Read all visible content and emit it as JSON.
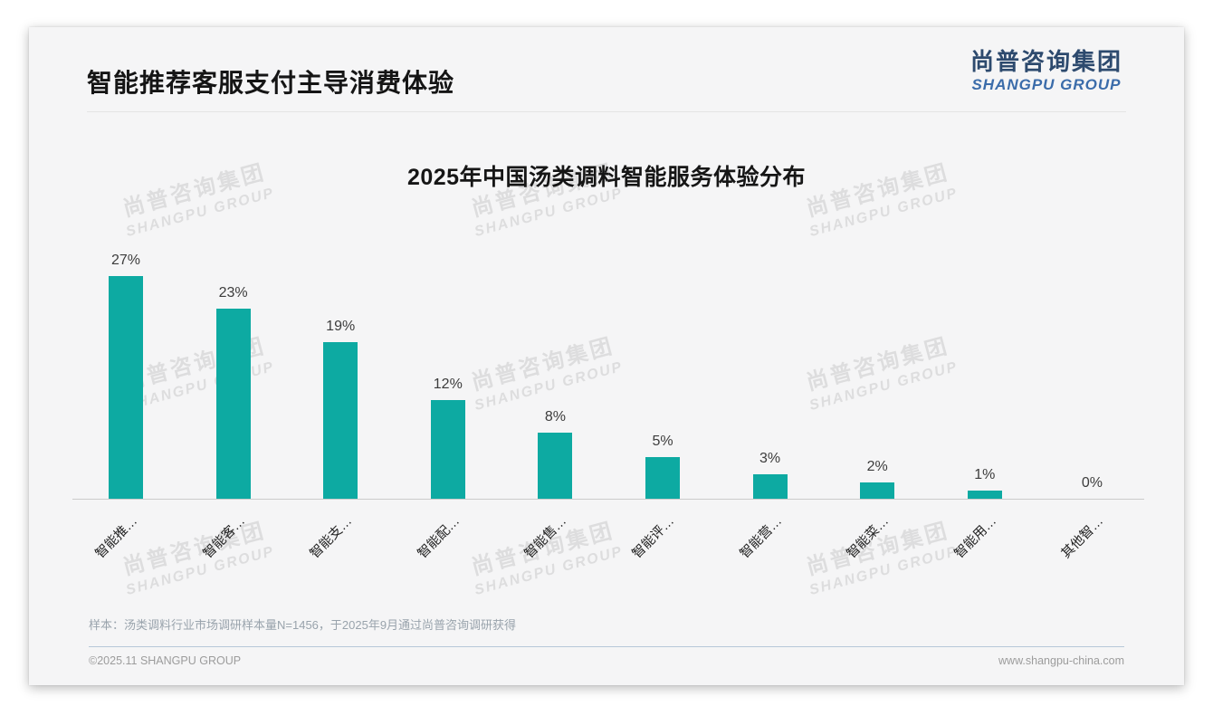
{
  "slide": {
    "page_title": "智能推荐客服支付主导消费体验",
    "logo": {
      "cn": "尚普咨询集团",
      "en": "SHANGPU GROUP"
    },
    "watermark": {
      "cn": "尚普咨询集团",
      "en": "SHANGPU GROUP"
    },
    "footnote": "样本：汤类调料行业市场调研样本量N=1456，于2025年9月通过尚普咨询调研获得",
    "footer": {
      "left": "©2025.11 SHANGPU GROUP",
      "right": "www.shangpu-china.com"
    }
  },
  "chart_data": {
    "type": "bar",
    "title": "2025年中国汤类调料智能服务体验分布",
    "categories": [
      "智能推…",
      "智能客…",
      "智能支…",
      "智能配…",
      "智能售…",
      "智能评…",
      "智能营…",
      "智能菜…",
      "智能用…",
      "其他智…"
    ],
    "values": [
      27,
      23,
      19,
      12,
      8,
      5,
      3,
      2,
      1,
      0
    ],
    "value_labels": [
      "27%",
      "23%",
      "19%",
      "12%",
      "8%",
      "5%",
      "3%",
      "2%",
      "1%",
      "0%"
    ],
    "unit": "%",
    "bar_color": "#0daaa2",
    "ylim": [
      0,
      30
    ],
    "grid": false,
    "legend": false,
    "x_labels_rotated_deg": 45
  }
}
